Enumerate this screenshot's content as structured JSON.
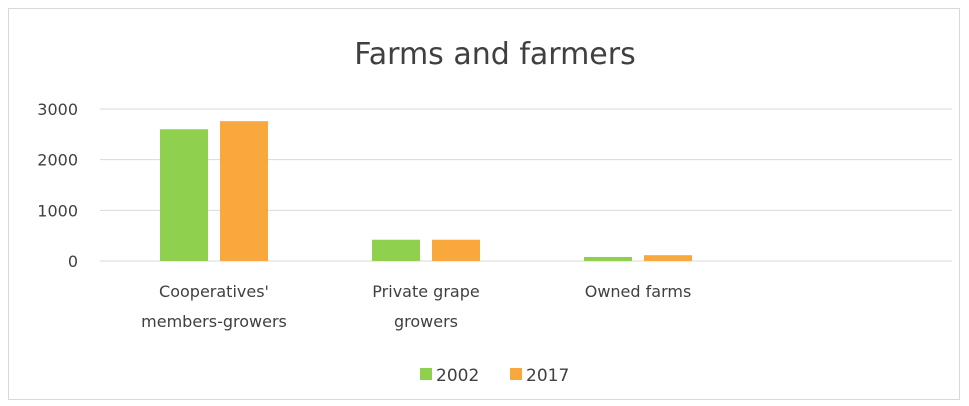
{
  "chart_data": {
    "type": "bar",
    "title": "Farms and farmers",
    "categories": [
      [
        "Cooperatives'",
        "members-growers"
      ],
      [
        "Private grape",
        "growers"
      ],
      [
        "Owned farms"
      ]
    ],
    "series": [
      {
        "name": "2002",
        "values": [
          2600,
          420,
          80
        ],
        "color": "#8fd14f"
      },
      {
        "name": "2017",
        "values": [
          2760,
          420,
          115
        ],
        "color": "#f9a83d"
      }
    ],
    "yticks": [
      0,
      1000,
      2000,
      3000
    ],
    "ylim": [
      0,
      3000
    ],
    "grid": true,
    "legend_position": "bottom"
  }
}
